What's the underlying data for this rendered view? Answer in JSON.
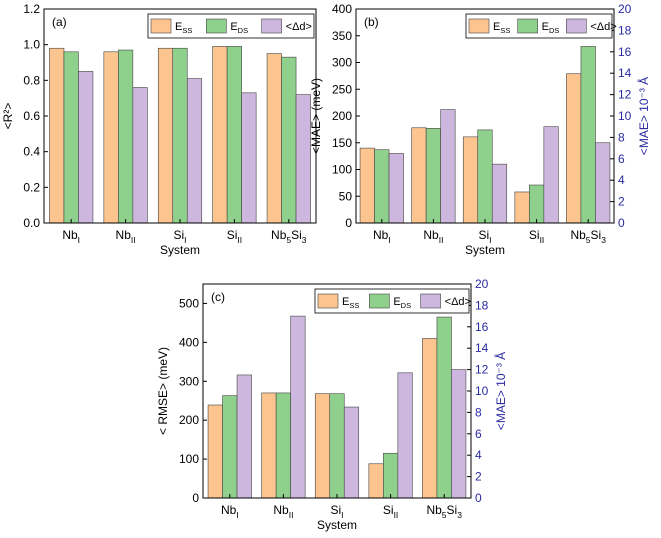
{
  "chart_data": [
    {
      "panel": "(a)",
      "type": "bar",
      "categories": [
        [
          "Nb",
          "I",
          ""
        ],
        [
          "Nb",
          "II",
          ""
        ],
        [
          "Si",
          "I",
          ""
        ],
        [
          "Si",
          "II",
          ""
        ],
        [
          "Nb",
          "5",
          "Si",
          "3"
        ]
      ],
      "xlabel": "System",
      "ylabel": "<R²>",
      "ylim": [
        0,
        1.2
      ],
      "yticks": [
        "0.0",
        "0.2",
        "0.4",
        "0.6",
        "0.8",
        "1.0",
        "1.2"
      ],
      "series": [
        {
          "name": "E_SS",
          "label_main": "E",
          "label_sub": "SS",
          "color": "#fcc58f",
          "axis": "left",
          "values": [
            0.98,
            0.96,
            0.98,
            0.99,
            0.95
          ]
        },
        {
          "name": "E_DS",
          "label_main": "E",
          "label_sub": "DS",
          "color": "#8fd18c",
          "axis": "left",
          "values": [
            0.96,
            0.97,
            0.98,
            0.99,
            0.93
          ]
        },
        {
          "name": "<Δd>",
          "label_main": "<Δd>",
          "label_sub": "",
          "color": "#cdb7df",
          "axis": "left",
          "values": [
            0.85,
            0.76,
            0.81,
            0.73,
            0.72
          ]
        }
      ],
      "legend": "top-right"
    },
    {
      "panel": "(b)",
      "type": "bar",
      "categories": [
        [
          "Nb",
          "I",
          ""
        ],
        [
          "Nb",
          "II",
          ""
        ],
        [
          "Si",
          "I",
          ""
        ],
        [
          "Si",
          "II",
          ""
        ],
        [
          "Nb",
          "5",
          "Si",
          "3"
        ]
      ],
      "xlabel": "System",
      "ylabel": "<MAE> (meV)",
      "ylim": [
        0,
        400
      ],
      "yticks": [
        "0",
        "50",
        "100",
        "150",
        "200",
        "250",
        "300",
        "350",
        "400"
      ],
      "y2label": "<MAE> 10⁻³ Å",
      "y2lim": [
        0,
        20
      ],
      "y2ticks": [
        "0",
        "2",
        "4",
        "6",
        "8",
        "10",
        "12",
        "14",
        "16",
        "18",
        "20"
      ],
      "series": [
        {
          "name": "E_SS",
          "label_main": "E",
          "label_sub": "SS",
          "color": "#fcc58f",
          "axis": "left",
          "values": [
            140,
            178,
            161,
            58,
            279
          ]
        },
        {
          "name": "E_DS",
          "label_main": "E",
          "label_sub": "DS",
          "color": "#8fd18c",
          "axis": "left",
          "values": [
            137,
            177,
            174,
            71,
            330
          ]
        },
        {
          "name": "<Δd>",
          "label_main": "<Δd>",
          "label_sub": "",
          "color": "#cdb7df",
          "axis": "right",
          "values": [
            6.5,
            10.6,
            5.5,
            9.0,
            7.5
          ]
        }
      ],
      "legend": "top-right"
    },
    {
      "panel": "(c)",
      "type": "bar",
      "categories": [
        [
          "Nb",
          "I",
          ""
        ],
        [
          "Nb",
          "II",
          ""
        ],
        [
          "Si",
          "I",
          ""
        ],
        [
          "Si",
          "II",
          ""
        ],
        [
          "Nb",
          "5",
          "Si",
          "3"
        ]
      ],
      "xlabel": "System",
      "ylabel": "< RMSE> (meV)",
      "ylim": [
        0,
        550
      ],
      "yticks": [
        "0",
        "100",
        "200",
        "300",
        "400",
        "500"
      ],
      "y2label": "<MAE> 10⁻³ Å",
      "y2lim": [
        0,
        20
      ],
      "y2ticks": [
        "0",
        "2",
        "4",
        "6",
        "8",
        "10",
        "12",
        "14",
        "16",
        "18",
        "20"
      ],
      "series": [
        {
          "name": "E_SS",
          "label_main": "E",
          "label_sub": "SS",
          "color": "#fcc58f",
          "axis": "left",
          "values": [
            239,
            270,
            268,
            88,
            410
          ]
        },
        {
          "name": "E_DS",
          "label_main": "E",
          "label_sub": "DS",
          "color": "#8fd18c",
          "axis": "left",
          "values": [
            263,
            270,
            268,
            115,
            465
          ]
        },
        {
          "name": "<Δd>",
          "label_main": "<Δd>",
          "label_sub": "",
          "color": "#cdb7df",
          "axis": "right",
          "values": [
            11.5,
            17.0,
            8.5,
            11.7,
            12.0
          ]
        }
      ],
      "legend": "top-right"
    }
  ]
}
